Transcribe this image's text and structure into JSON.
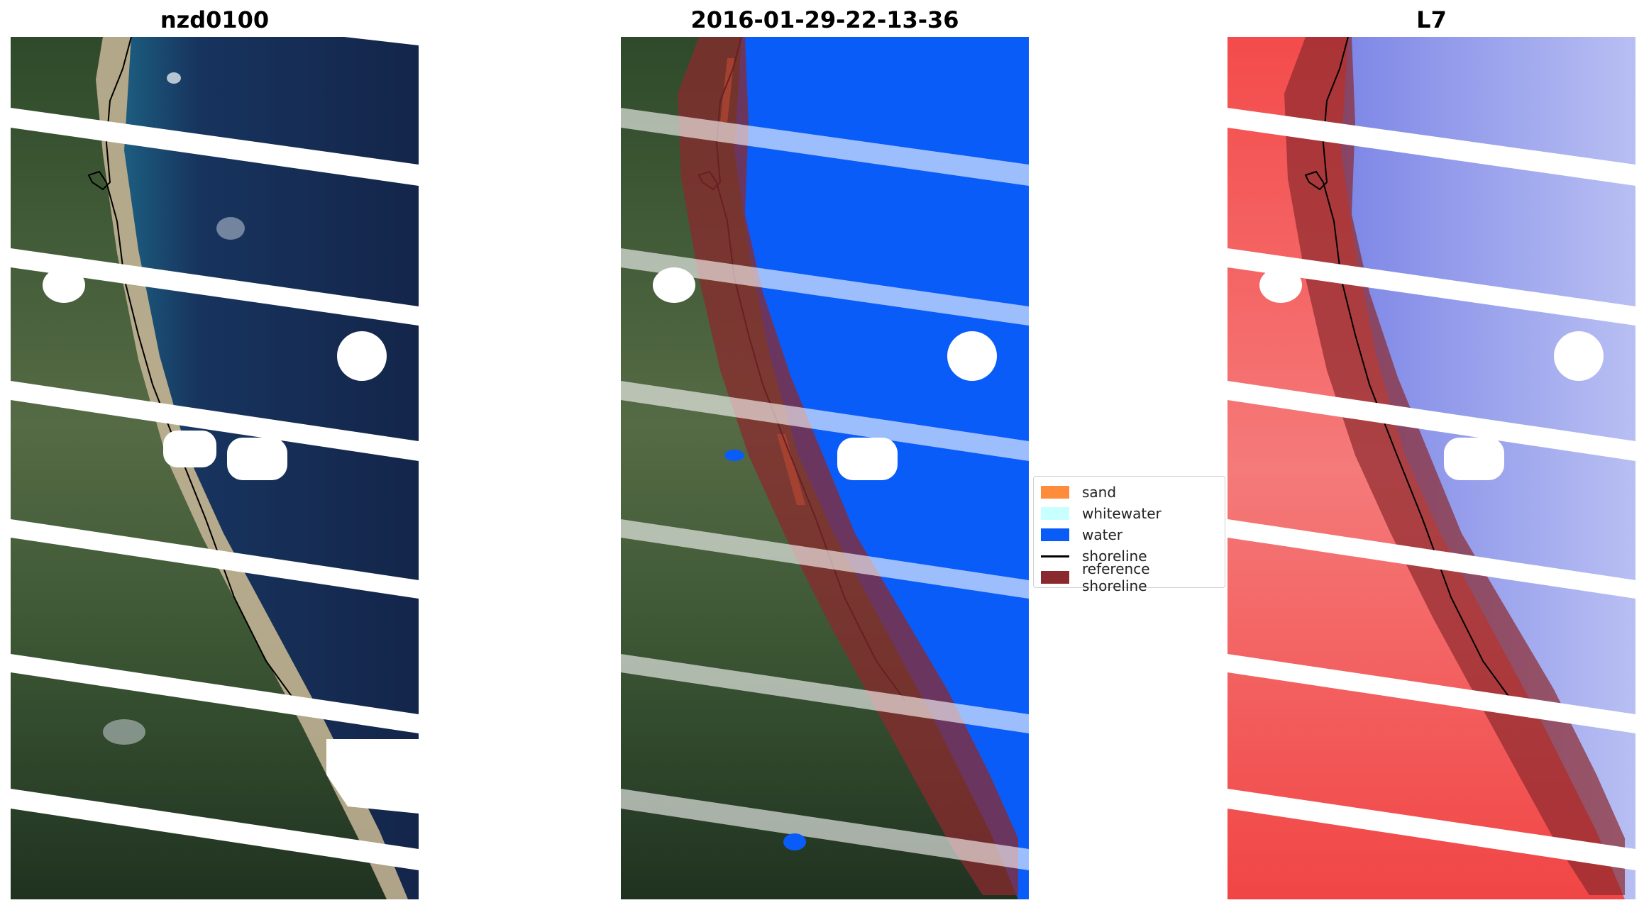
{
  "figure": {
    "panels": [
      {
        "id": "rgb",
        "title": "nzd0100"
      },
      {
        "id": "classified",
        "title": "2016-01-29-22-13-36"
      },
      {
        "id": "index",
        "title": "L7"
      }
    ]
  },
  "legend": {
    "items": [
      {
        "label": "sand",
        "color": "#ff8c3a",
        "kind": "patch"
      },
      {
        "label": "whitewater",
        "color": "#c8ffff",
        "kind": "patch"
      },
      {
        "label": "water",
        "color": "#0a5cf8",
        "kind": "patch"
      },
      {
        "label": "shoreline",
        "color": "#000000",
        "kind": "line"
      },
      {
        "label": "reference shoreline",
        "color": "#8b2a2e",
        "kind": "patch"
      }
    ]
  },
  "colors": {
    "land_green": "#3e5a34",
    "land_dark": "#20301f",
    "sand_beige": "#c9b79a",
    "ocean_dark": "#17264a",
    "ocean_blue": "#0a5cf8",
    "index_red": "#f24a4a",
    "index_blue": "#6d72dd",
    "reference_band": "#8b2a2e",
    "shoreline": "#000000",
    "gaps": "#ffffff"
  }
}
